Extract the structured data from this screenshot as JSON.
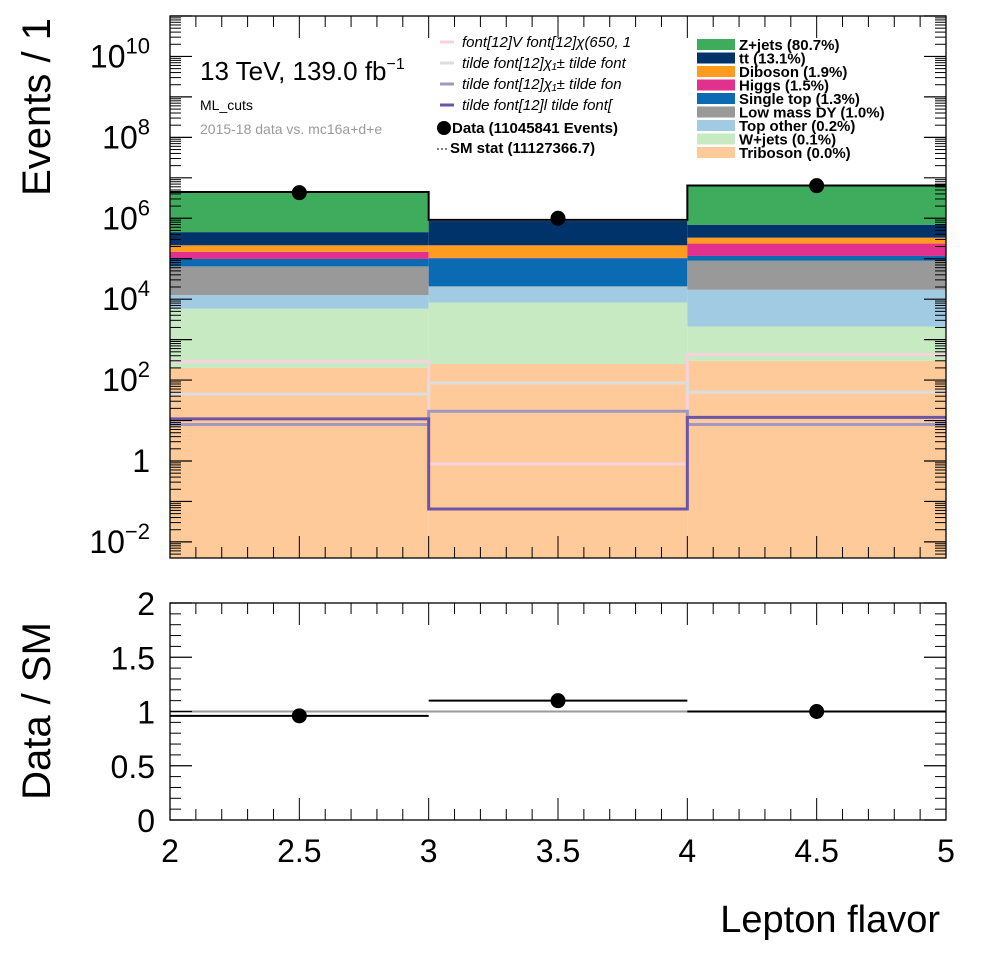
{
  "chart_data": [
    {
      "type": "bar",
      "stacked": true,
      "yscale": "log",
      "xlabel": "Lepton flavor",
      "ylabel": "Events / 1",
      "xlim": [
        2,
        5
      ],
      "ylim": [
        0.004,
        100000000000
      ],
      "y_ticks": [
        {
          "v": 0.01,
          "base": "10",
          "exp": "−2"
        },
        {
          "v": 1,
          "base": "1",
          "exp": ""
        },
        {
          "v": 100,
          "base": "10",
          "exp": "2"
        },
        {
          "v": 10000,
          "base": "10",
          "exp": "4"
        },
        {
          "v": 1000000,
          "base": "10",
          "exp": "6"
        },
        {
          "v": 100000000,
          "base": "10",
          "exp": "8"
        },
        {
          "v": 10000000000,
          "base": "10",
          "exp": "10"
        }
      ],
      "annotations": {
        "energy": "13 TeV, 139.0 fb",
        "lumi_exp": "−1",
        "region": "ML_cuts",
        "dataset": "2015-18 data vs. mc16a+d+e"
      },
      "bin_edges": [
        2,
        3,
        4,
        5
      ],
      "stack_order": [
        "Triboson",
        "W+jets",
        "Top other",
        "Low mass DY",
        "Single top",
        "Higgs",
        "Diboson",
        "tt",
        "Z+jets"
      ],
      "series": [
        {
          "name": "Z+jets",
          "legend": "Z+jets (80.7%)",
          "color": "#3fab5c",
          "values": [
            3970000,
            0,
            5540000
          ]
        },
        {
          "name": "tt",
          "legend": "tt (13.1%)",
          "color": "#01336b",
          "values": [
            240000,
            640000,
            360000
          ]
        },
        {
          "name": "Diboson",
          "legend": "Diboson (1.9%)",
          "color": "#ff9b1f",
          "values": [
            66000,
            110000,
            95000
          ]
        },
        {
          "name": "Higgs",
          "legend": "Higgs (1.5%)",
          "color": "#e2308e",
          "values": [
            50000,
            2000,
            120000
          ]
        },
        {
          "name": "Single top",
          "legend": "Single top (1.3%)",
          "color": "#0a6bb3",
          "values": [
            34000,
            82000,
            28000
          ]
        },
        {
          "name": "Low mass DY",
          "legend": "Low mass DY (1.0%)",
          "color": "#999999",
          "values": [
            52000,
            500,
            72000
          ]
        },
        {
          "name": "Top other",
          "legend": "Top other (0.2%)",
          "color": "#a0cbe2",
          "values": [
            6800,
            12000,
            15000
          ]
        },
        {
          "name": "W+jets",
          "legend": "W+jets (0.1%)",
          "color": "#c8eac3",
          "values": [
            5600,
            8000,
            1800
          ]
        },
        {
          "name": "Triboson",
          "legend": "Triboson (0.0%)",
          "color": "#ffca9a",
          "values": [
            200,
            250,
            300
          ]
        }
      ],
      "data_points": {
        "x": [
          2.5,
          3.5,
          4.5
        ],
        "y": [
          4300000,
          1000000,
          6400000
        ],
        "legend": "Data (11045841 Events)"
      },
      "sm_total": {
        "values": [
          4450000,
          910000,
          6450000
        ],
        "legend": "SM stat (11127366.7)"
      },
      "signals": [
        {
          "legend": "font[12]V   font[12]χ(650, 1",
          "color": "#f4d3dc",
          "values": [
            290,
            0.85,
            430
          ]
        },
        {
          "legend": "tilde   font[12]χ₁±   tilde   font",
          "color": "#dddddd",
          "values": [
            45,
            85,
            50
          ]
        },
        {
          "legend": "tilde   font[12]χ₁±   tilde   fon",
          "color": "#a197c4",
          "values": [
            8,
            17,
            8
          ]
        },
        {
          "legend": "tilde   font[12]l   tilde   font[",
          "color": "#6c55a6",
          "values": [
            11,
            0.065,
            12
          ]
        }
      ]
    },
    {
      "type": "scatter",
      "xlabel": "Lepton flavor",
      "ylabel": "Data / SM",
      "xlim": [
        2,
        5
      ],
      "ylim": [
        0,
        2
      ],
      "x_ticks": [
        "2",
        "2.5",
        "3",
        "3.5",
        "4",
        "4.5",
        "5"
      ],
      "y_ticks": [
        "0",
        "0.5",
        "1",
        "1.5",
        "2"
      ],
      "x": [
        2.5,
        3.5,
        4.5
      ],
      "y": [
        0.96,
        1.1,
        1.0
      ],
      "x_err": [
        0.5,
        0.5,
        0.5
      ],
      "reference": 1
    }
  ]
}
